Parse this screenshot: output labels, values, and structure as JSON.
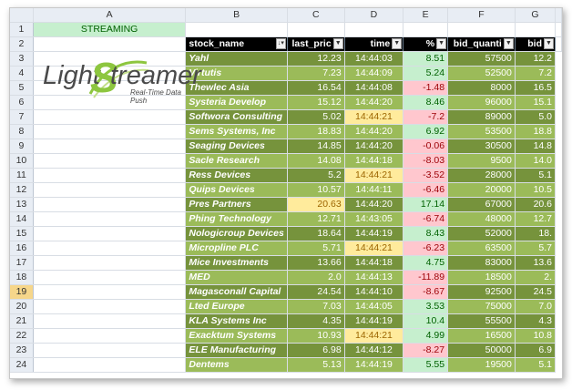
{
  "sheet": {
    "columns": [
      "A",
      "B",
      "C",
      "D",
      "E",
      "F",
      "G"
    ],
    "selected_row": "19",
    "a1_label": "STREAMING",
    "headers": [
      "stock_name",
      "last_pric",
      "time",
      "%",
      "bid_quanti",
      "bid"
    ],
    "logo": {
      "word1": "Light",
      "s": "S",
      "word2": "treamer",
      "tagline": "Real-Time Data Push"
    },
    "rows": [
      {
        "n": "1"
      },
      {
        "n": "2"
      },
      {
        "n": "3",
        "name": "Yahl",
        "last": "12.23",
        "time": "14:44:03",
        "pct": "8.51",
        "bq": "57500",
        "bid": "12.2"
      },
      {
        "n": "4",
        "name": "Virtutis",
        "last": "7.23",
        "time": "14:44:09",
        "pct": "5.24",
        "bq": "52500",
        "bid": "7.2"
      },
      {
        "n": "5",
        "name": "Thewlec Asia",
        "last": "16.54",
        "time": "14:44:08",
        "pct": "-1.48",
        "bq": "8000",
        "bid": "16.5"
      },
      {
        "n": "6",
        "name": "Systeria Develop",
        "last": "15.12",
        "time": "14:44:20",
        "pct": "8.46",
        "bq": "96000",
        "bid": "15.1"
      },
      {
        "n": "7",
        "name": "Softwora Consulting",
        "last": "5.02",
        "time": "14:44:21",
        "pct": "-7.2",
        "bq": "89000",
        "bid": "5.0"
      },
      {
        "n": "8",
        "name": "Sems Systems, Inc",
        "last": "18.83",
        "time": "14:44:20",
        "pct": "6.92",
        "bq": "53500",
        "bid": "18.8"
      },
      {
        "n": "9",
        "name": "Seaging Devices",
        "last": "14.85",
        "time": "14:44:20",
        "pct": "-0.06",
        "bq": "30500",
        "bid": "14.8"
      },
      {
        "n": "10",
        "name": "Sacle Research",
        "last": "14.08",
        "time": "14:44:18",
        "pct": "-8.03",
        "bq": "9500",
        "bid": "14.0"
      },
      {
        "n": "11",
        "name": "Ress Devices",
        "last": "5.2",
        "time": "14:44:21",
        "pct": "-3.52",
        "bq": "28000",
        "bid": "5.1"
      },
      {
        "n": "12",
        "name": "Quips Devices",
        "last": "10.57",
        "time": "14:44:11",
        "pct": "-6.46",
        "bq": "20000",
        "bid": "10.5"
      },
      {
        "n": "13",
        "name": "Pres Partners",
        "last": "20.63",
        "time": "14:44:20",
        "pct": "17.14",
        "bq": "67000",
        "bid": "20.6"
      },
      {
        "n": "14",
        "name": "Phing Technology",
        "last": "12.71",
        "time": "14:43:05",
        "pct": "-6.74",
        "bq": "48000",
        "bid": "12.7"
      },
      {
        "n": "15",
        "name": "Nologicroup Devices",
        "last": "18.64",
        "time": "14:44:19",
        "pct": "8.43",
        "bq": "52000",
        "bid": "18."
      },
      {
        "n": "16",
        "name": "Micropline PLC",
        "last": "5.71",
        "time": "14:44:21",
        "pct": "-6.23",
        "bq": "63500",
        "bid": "5.7"
      },
      {
        "n": "17",
        "name": "Mice Investments",
        "last": "13.66",
        "time": "14:44:18",
        "pct": "4.75",
        "bq": "83000",
        "bid": "13.6"
      },
      {
        "n": "18",
        "name": "MED",
        "last": "2.0",
        "time": "14:44:13",
        "pct": "-11.89",
        "bq": "18500",
        "bid": "2."
      },
      {
        "n": "19",
        "name": "Magasconall Capital",
        "last": "24.54",
        "time": "14:44:10",
        "pct": "-8.67",
        "bq": "92500",
        "bid": "24.5"
      },
      {
        "n": "20",
        "name": "Lted Europe",
        "last": "7.03",
        "time": "14:44:05",
        "pct": "3.53",
        "bq": "75000",
        "bid": "7.0"
      },
      {
        "n": "21",
        "name": "KLA Systems Inc",
        "last": "4.35",
        "time": "14:44:19",
        "pct": "10.4",
        "bq": "55500",
        "bid": "4.3"
      },
      {
        "n": "22",
        "name": "Exacktum Systems",
        "last": "10.93",
        "time": "14:44:21",
        "pct": "4.99",
        "bq": "16500",
        "bid": "10.8"
      },
      {
        "n": "23",
        "name": "ELE Manufacturing",
        "last": "6.98",
        "time": "14:44:12",
        "pct": "-8.27",
        "bq": "50000",
        "bid": "6.9"
      },
      {
        "n": "24",
        "name": "Dentems",
        "last": "5.13",
        "time": "14:44:19",
        "pct": "5.55",
        "bq": "19500",
        "bid": "5.1"
      }
    ],
    "highlighted_time_rows": [
      "7",
      "11",
      "16",
      "22"
    ],
    "highlighted_last_rows": [
      "13"
    ]
  }
}
